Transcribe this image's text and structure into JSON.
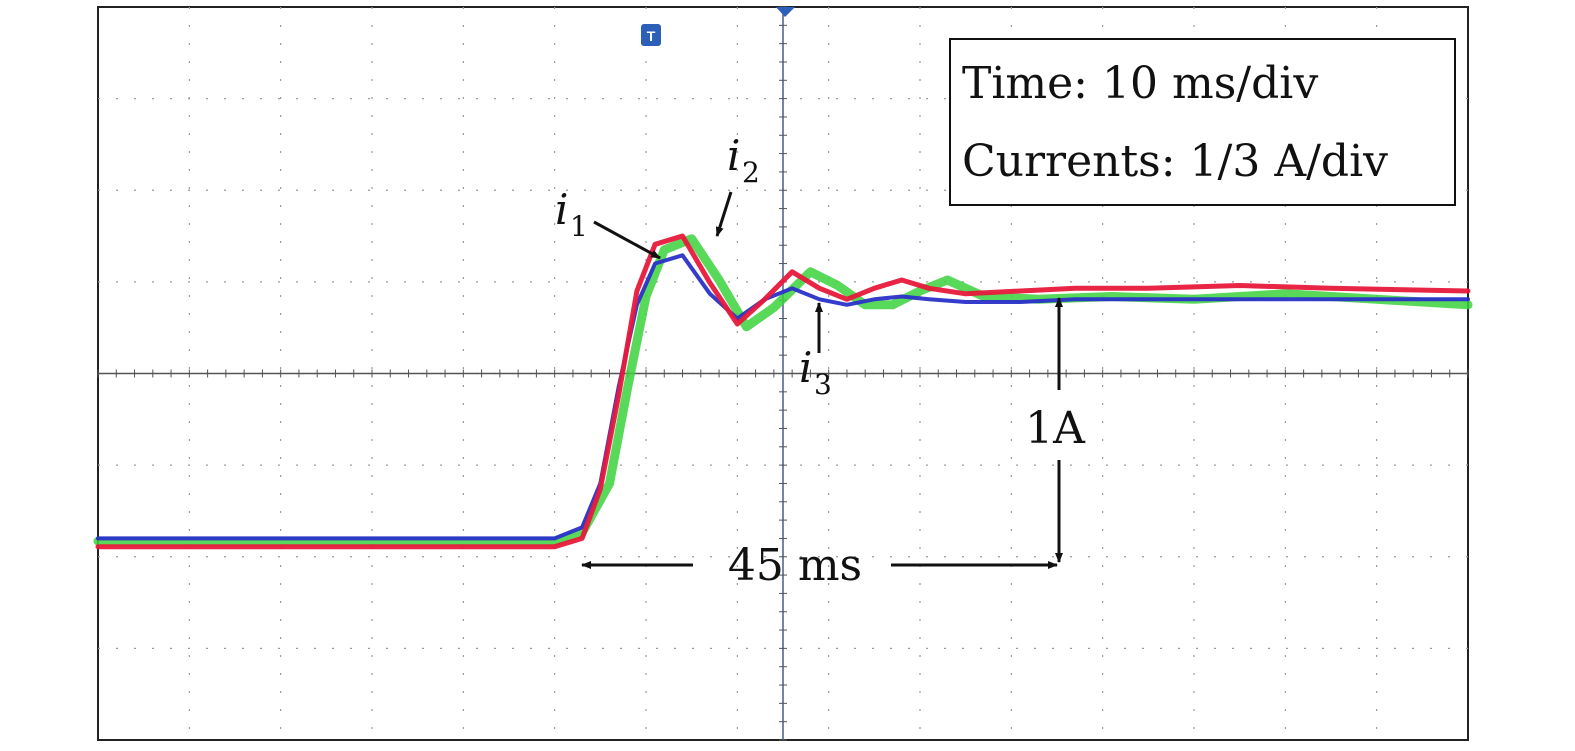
{
  "chart_data": {
    "type": "line",
    "info_box": {
      "line1": "Time: 10 ms/div",
      "line2": "Currents: 1/3 A/div"
    },
    "time_per_div_ms": 10,
    "amps_per_div": 0.3333,
    "divisions": {
      "x": 15,
      "y": 8
    },
    "xlim_ms": [
      -75,
      75
    ],
    "ylim_A": [
      -1.3333,
      1.3333
    ],
    "trigger_marker": "T",
    "series": [
      {
        "name": "i1",
        "label_main": "i",
        "label_sub": "1",
        "color": "#e8193c",
        "points": [
          [
            -75,
            -0.63
          ],
          [
            -25,
            -0.63
          ],
          [
            -22,
            -0.6
          ],
          [
            -20,
            -0.42
          ],
          [
            -18,
            -0.08
          ],
          [
            -16,
            0.3
          ],
          [
            -14,
            0.47
          ],
          [
            -11,
            0.5
          ],
          [
            -8,
            0.33
          ],
          [
            -5,
            0.18
          ],
          [
            -2,
            0.27
          ],
          [
            1,
            0.37
          ],
          [
            4,
            0.31
          ],
          [
            7,
            0.27
          ],
          [
            10,
            0.31
          ],
          [
            13,
            0.34
          ],
          [
            16,
            0.31
          ],
          [
            20,
            0.29
          ],
          [
            26,
            0.3
          ],
          [
            32,
            0.31
          ],
          [
            40,
            0.31
          ],
          [
            50,
            0.32
          ],
          [
            60,
            0.31
          ],
          [
            75,
            0.3
          ]
        ]
      },
      {
        "name": "i2",
        "label_main": "i",
        "label_sub": "2",
        "color": "#3cd23c",
        "points": [
          [
            -75,
            -0.61
          ],
          [
            -25,
            -0.61
          ],
          [
            -22,
            -0.58
          ],
          [
            -19,
            -0.4
          ],
          [
            -17,
            -0.05
          ],
          [
            -15,
            0.28
          ],
          [
            -13,
            0.45
          ],
          [
            -10,
            0.49
          ],
          [
            -7,
            0.34
          ],
          [
            -4,
            0.17
          ],
          [
            -1,
            0.24
          ],
          [
            3,
            0.37
          ],
          [
            6,
            0.32
          ],
          [
            9,
            0.25
          ],
          [
            12,
            0.25
          ],
          [
            15,
            0.3
          ],
          [
            18,
            0.34
          ],
          [
            22,
            0.28
          ],
          [
            28,
            0.27
          ],
          [
            36,
            0.28
          ],
          [
            45,
            0.27
          ],
          [
            55,
            0.29
          ],
          [
            65,
            0.27
          ],
          [
            70,
            0.26
          ],
          [
            75,
            0.25
          ]
        ]
      },
      {
        "name": "i3",
        "label_main": "i",
        "label_sub": "3",
        "color": "#2a30c8",
        "points": [
          [
            -75,
            -0.6
          ],
          [
            -25,
            -0.6
          ],
          [
            -22,
            -0.56
          ],
          [
            -20,
            -0.4
          ],
          [
            -18,
            -0.05
          ],
          [
            -16,
            0.25
          ],
          [
            -14,
            0.4
          ],
          [
            -11,
            0.43
          ],
          [
            -8,
            0.29
          ],
          [
            -5,
            0.2
          ],
          [
            -2,
            0.27
          ],
          [
            1,
            0.31
          ],
          [
            4,
            0.27
          ],
          [
            7,
            0.25
          ],
          [
            10,
            0.27
          ],
          [
            13,
            0.28
          ],
          [
            16,
            0.27
          ],
          [
            20,
            0.26
          ],
          [
            26,
            0.26
          ],
          [
            32,
            0.27
          ],
          [
            40,
            0.27
          ],
          [
            50,
            0.27
          ],
          [
            60,
            0.27
          ],
          [
            75,
            0.27
          ]
        ]
      }
    ],
    "annotations": {
      "step_amplitude": "1A",
      "settling_time": "45 ms"
    }
  }
}
